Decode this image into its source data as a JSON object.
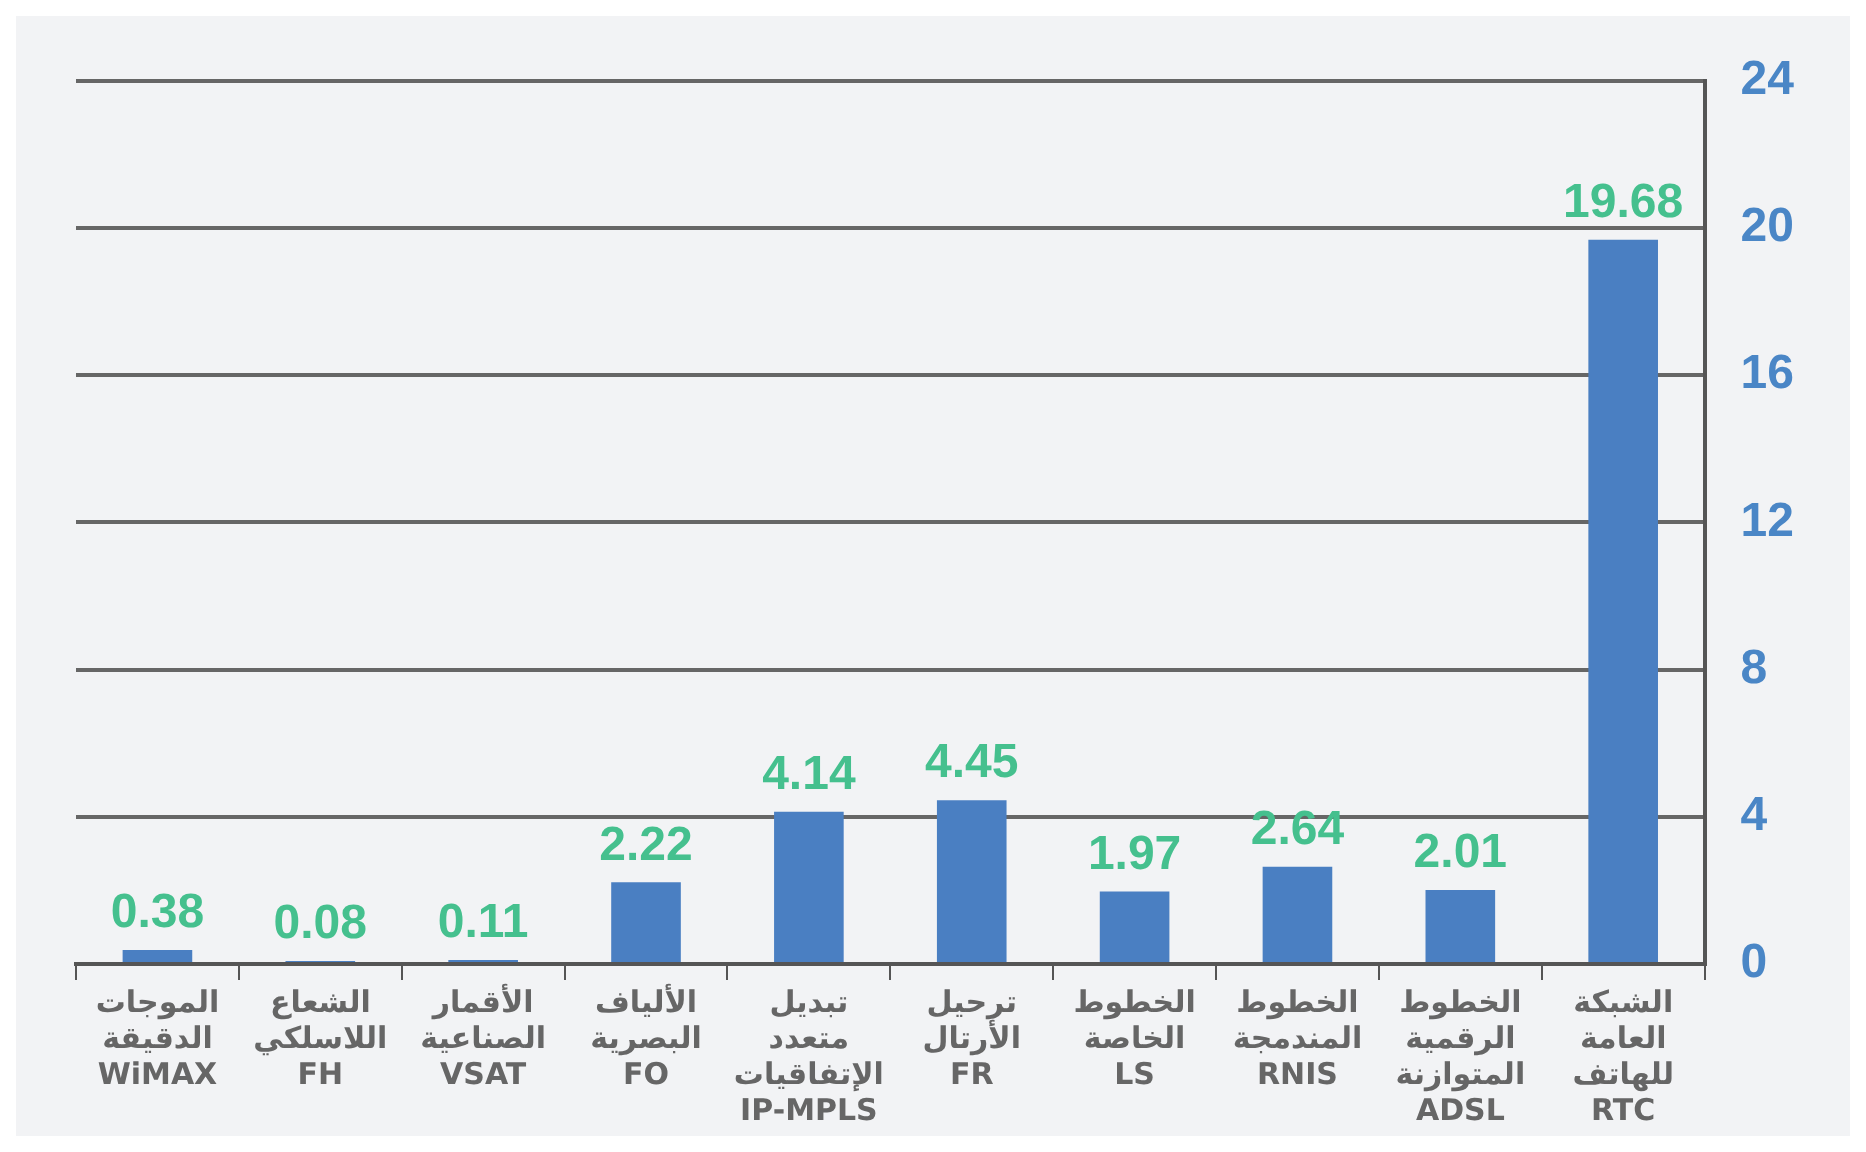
{
  "chart_data": {
    "type": "bar",
    "categories": [
      "الموجات الدقيقة WiMAX",
      "الشعاع اللاسلكي FH",
      "الأقمار الصناعية VSAT",
      "الألياف البصرية FO",
      "تبديل متعدد الإتفاقيات IP-MPLS",
      "ترحيل الأرتال FR",
      "الخطوط الخاصة LS",
      "الخطوط المندمجة RNIS",
      "الخطوط الرقمية المتوازنة ADSL",
      "الشبكة العامة للهاتف RTC"
    ],
    "values": [
      0.38,
      0.08,
      0.11,
      2.22,
      4.14,
      4.45,
      1.97,
      2.64,
      2.01,
      19.68
    ],
    "color": "#4a7fc2",
    "ylim": [
      0,
      24
    ],
    "yticks": [
      0,
      4,
      8,
      12,
      16,
      20,
      24
    ],
    "grid": "y",
    "data_labels": true,
    "legend": false
  }
}
